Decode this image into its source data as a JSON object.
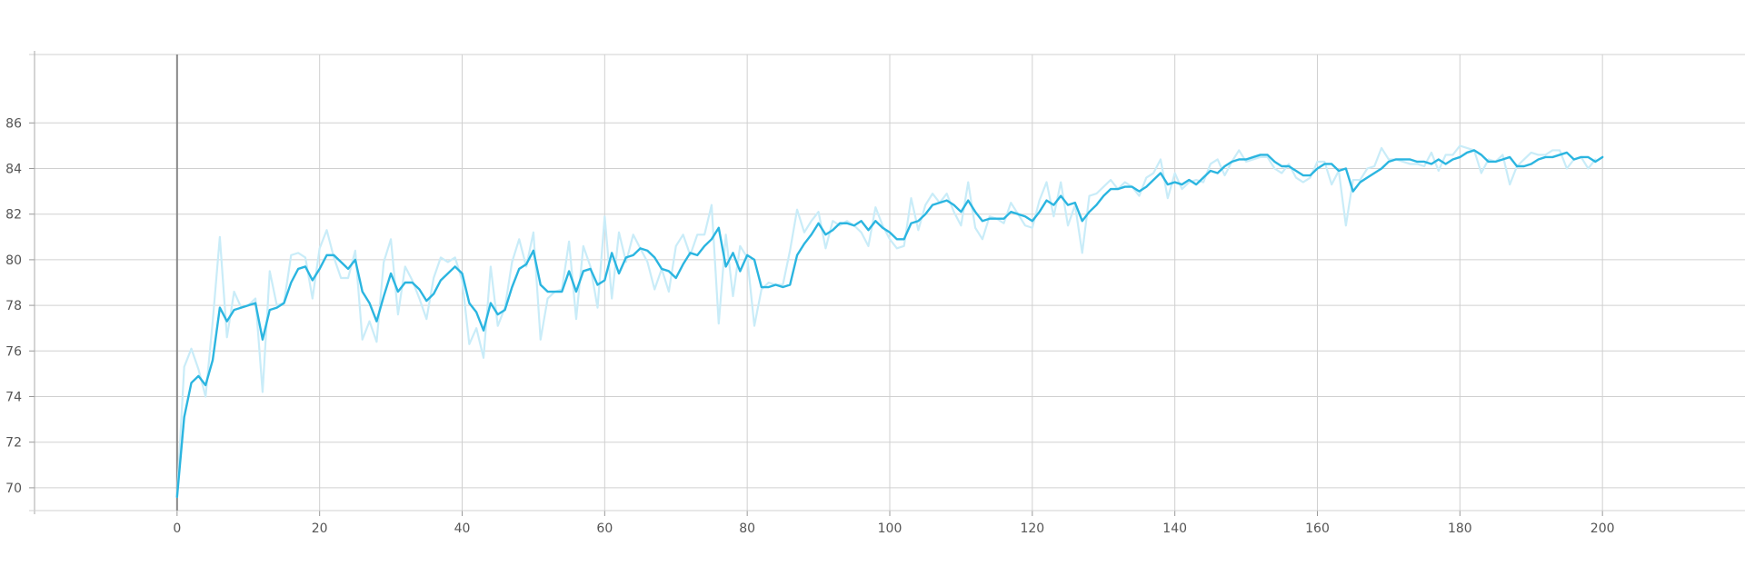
{
  "chart_data": {
    "type": "line",
    "title": "",
    "xlabel": "",
    "ylabel": "",
    "xlim": [
      -20,
      220
    ],
    "ylim": [
      69,
      89
    ],
    "xticks": [
      0,
      20,
      40,
      60,
      80,
      100,
      120,
      140,
      160,
      180,
      200
    ],
    "yticks": [
      70,
      72,
      74,
      76,
      78,
      80,
      82,
      84,
      86
    ],
    "grid": true,
    "legend": "none",
    "colors": {
      "smoothed": "#2bb5e0",
      "raw": "#c9ecf8",
      "grid": "#d0d0d0",
      "zero_axis": "#888888"
    },
    "series": [
      {
        "values": [
          69.6,
          75.3,
          76.1,
          75.2,
          74.0,
          77.3,
          81.0,
          76.6,
          78.6,
          77.9,
          78.0,
          78.3,
          74.2,
          79.5,
          78.0,
          78.1,
          80.2,
          80.3,
          80.1,
          78.3,
          80.5,
          81.3,
          80.1,
          79.2,
          79.2,
          80.4,
          76.5,
          77.3,
          76.4,
          79.9,
          80.9,
          77.6,
          79.7,
          79.1,
          78.3,
          77.4,
          79.2,
          80.1,
          79.9,
          80.1,
          79.1,
          76.3,
          77.0,
          75.7,
          79.7,
          77.1,
          77.9,
          79.9,
          80.9,
          79.7,
          81.2,
          76.5,
          78.3,
          78.6,
          78.7,
          80.8,
          77.4,
          80.6,
          79.7,
          77.9,
          81.9,
          78.3,
          81.2,
          79.9,
          81.1,
          80.5,
          79.9,
          78.7,
          79.6,
          78.6,
          80.6,
          81.1,
          80.2,
          81.1,
          81.1,
          82.4,
          77.2,
          81.1,
          78.4,
          80.6,
          80.1,
          77.1,
          78.7,
          79.0,
          78.9,
          78.9,
          80.4,
          82.2,
          81.2,
          81.7,
          82.1,
          80.5,
          81.7,
          81.5,
          81.7,
          81.5,
          81.2,
          80.6,
          82.3,
          81.5,
          80.9,
          80.5,
          80.6,
          82.7,
          81.3,
          82.4,
          82.9,
          82.5,
          82.9,
          82.1,
          81.5,
          83.4,
          81.4,
          80.9,
          81.9,
          81.8,
          81.6,
          82.5,
          82.0,
          81.5,
          81.4,
          82.6,
          83.4,
          81.9,
          83.4,
          81.5,
          82.4,
          80.3,
          82.8,
          82.9,
          83.2,
          83.5,
          83.1,
          83.4,
          83.2,
          82.8,
          83.6,
          83.8,
          84.4,
          82.7,
          83.8,
          83.1,
          83.4,
          83.5,
          83.4,
          84.2,
          84.4,
          83.7,
          84.3,
          84.8,
          84.3,
          84.4,
          84.5,
          84.5,
          84.0,
          83.8,
          84.2,
          83.6,
          83.4,
          83.6,
          84.3,
          84.3,
          83.3,
          83.9,
          81.5,
          83.5,
          83.5,
          84.0,
          84.1,
          84.9,
          84.4,
          84.4,
          84.3,
          84.2,
          84.2,
          84.1,
          84.7,
          83.9,
          84.6,
          84.6,
          85.0,
          84.9,
          84.8,
          83.8,
          84.4,
          84.3,
          84.6,
          83.3,
          84.1,
          84.4,
          84.7,
          84.6,
          84.6,
          84.8,
          84.8,
          84.0,
          84.4,
          84.5,
          84.0,
          84.4
        ]
      },
      {
        "values": [
          69.6,
          73.1,
          74.6,
          74.9,
          74.5,
          75.6,
          77.9,
          77.3,
          77.8,
          77.9,
          78.0,
          78.1,
          76.5,
          77.8,
          77.9,
          78.1,
          79.0,
          79.6,
          79.7,
          79.1,
          79.6,
          80.2,
          80.2,
          79.9,
          79.6,
          80.0,
          78.6,
          78.1,
          77.3,
          78.4,
          79.4,
          78.6,
          79.0,
          79.0,
          78.7,
          78.2,
          78.5,
          79.1,
          79.4,
          79.7,
          79.4,
          78.1,
          77.7,
          76.9,
          78.1,
          77.6,
          77.8,
          78.8,
          79.6,
          79.8,
          80.4,
          78.9,
          78.6,
          78.6,
          78.6,
          79.5,
          78.6,
          79.5,
          79.6,
          78.9,
          79.1,
          80.3,
          79.4,
          80.1,
          80.2,
          80.5,
          80.4,
          80.1,
          79.6,
          79.5,
          79.2,
          79.8,
          80.3,
          80.2,
          80.6,
          80.9,
          81.4,
          79.7,
          80.3,
          79.5,
          80.2,
          80.0,
          78.8,
          78.8,
          78.9,
          78.8,
          78.9,
          80.2,
          80.7,
          81.1,
          81.6,
          81.1,
          81.3,
          81.6,
          81.6,
          81.5,
          81.7,
          81.3,
          81.7,
          81.4,
          81.2,
          80.9,
          80.9,
          81.6,
          81.7,
          82.0,
          82.4,
          82.5,
          82.6,
          82.4,
          82.1,
          82.6,
          82.1,
          81.7,
          81.8,
          81.8,
          81.8,
          82.1,
          82.0,
          81.9,
          81.7,
          82.1,
          82.6,
          82.4,
          82.8,
          82.4,
          82.5,
          81.7,
          82.1,
          82.4,
          82.8,
          83.1,
          83.1,
          83.2,
          83.2,
          83.0,
          83.2,
          83.5,
          83.8,
          83.3,
          83.4,
          83.3,
          83.5,
          83.3,
          83.6,
          83.9,
          83.8,
          84.1,
          84.3,
          84.4,
          84.4,
          84.5,
          84.6,
          84.6,
          84.3,
          84.1,
          84.1,
          83.9,
          83.7,
          83.7,
          84.0,
          84.2,
          84.2,
          83.9,
          84.0,
          83.0,
          83.4,
          83.6,
          83.8,
          84.0,
          84.3,
          84.4,
          84.4,
          84.4,
          84.3,
          84.3,
          84.2,
          84.4,
          84.2,
          84.4,
          84.5,
          84.7,
          84.8,
          84.6,
          84.3,
          84.3,
          84.4,
          84.5,
          84.1,
          84.1,
          84.2,
          84.4,
          84.5,
          84.5,
          84.6,
          84.7,
          84.4,
          84.5,
          84.5,
          84.3,
          84.5
        ]
      }
    ]
  }
}
